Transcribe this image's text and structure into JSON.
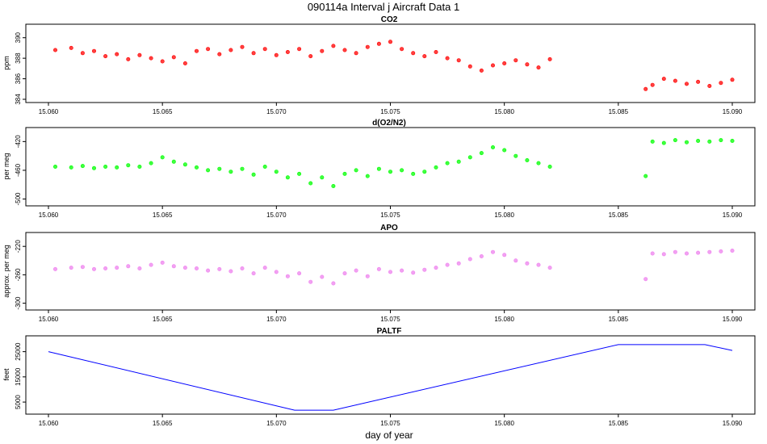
{
  "figure": {
    "title": "090114a   Interval j Aircraft Data 1",
    "xlabel": "day of year"
  },
  "colors": {
    "co2": "#ff0000",
    "do2n2": "#00ff00",
    "apo": "#ee82ee",
    "paltf": "#0000ff"
  },
  "chart_data": [
    {
      "type": "scatter",
      "title": "CO2",
      "ylabel": "ppm",
      "xlim": [
        15.06,
        15.09
      ],
      "ylim": [
        384,
        391
      ],
      "xticks": [
        "15.060",
        "15.065",
        "15.070",
        "15.075",
        "15.080",
        "15.085",
        "15.090"
      ],
      "yticks": [
        "384",
        "386",
        "388",
        "390"
      ],
      "series": [
        {
          "x": [
            15.0603,
            15.061,
            15.0615,
            15.062,
            15.0625,
            15.063,
            15.0635,
            15.064,
            15.0645,
            15.065,
            15.0655,
            15.066,
            15.0665,
            15.067,
            15.0675,
            15.068,
            15.0685,
            15.069,
            15.0695,
            15.07,
            15.0705,
            15.071,
            15.0715,
            15.072,
            15.0725,
            15.073,
            15.0735,
            15.074,
            15.0745,
            15.075,
            15.0755,
            15.076,
            15.0765,
            15.077,
            15.0775,
            15.078,
            15.0785,
            15.079,
            15.0795,
            15.08,
            15.0805,
            15.081,
            15.0815,
            15.082,
            15.0862,
            15.0865,
            15.087,
            15.0875,
            15.088,
            15.0885,
            15.089,
            15.0895,
            15.09
          ],
          "y": [
            388.8,
            389.0,
            388.5,
            388.7,
            388.2,
            388.4,
            387.9,
            388.3,
            388.0,
            387.7,
            388.1,
            387.5,
            388.7,
            388.9,
            388.4,
            388.8,
            389.1,
            388.5,
            388.9,
            388.3,
            388.6,
            388.9,
            388.2,
            388.7,
            389.2,
            388.8,
            388.5,
            389.1,
            389.4,
            389.6,
            388.9,
            388.5,
            388.2,
            388.6,
            388.0,
            387.8,
            387.2,
            386.8,
            387.3,
            387.5,
            387.8,
            387.4,
            387.1,
            387.9,
            385.0,
            385.4,
            386.0,
            385.8,
            385.5,
            385.7,
            385.3,
            385.6,
            385.9
          ]
        }
      ]
    },
    {
      "type": "scatter",
      "title": "d(O2/N2)",
      "ylabel": "per meg",
      "xlim": [
        15.06,
        15.09
      ],
      "ylim": [
        -505,
        -405
      ],
      "xticks": [
        "15.060",
        "15.065",
        "15.070",
        "15.075",
        "15.080",
        "15.085",
        "15.090"
      ],
      "yticks": [
        "-500",
        "-460",
        "-420"
      ],
      "series": [
        {
          "x": [
            15.0603,
            15.061,
            15.0615,
            15.062,
            15.0625,
            15.063,
            15.0635,
            15.064,
            15.0645,
            15.065,
            15.0655,
            15.066,
            15.0665,
            15.067,
            15.0675,
            15.068,
            15.0685,
            15.069,
            15.0695,
            15.07,
            15.0705,
            15.071,
            15.0715,
            15.072,
            15.0725,
            15.073,
            15.0735,
            15.074,
            15.0745,
            15.075,
            15.0755,
            15.076,
            15.0765,
            15.077,
            15.0775,
            15.078,
            15.0785,
            15.079,
            15.0795,
            15.08,
            15.0805,
            15.081,
            15.0815,
            15.082,
            15.0862,
            15.0865,
            15.087,
            15.0875,
            15.088,
            15.0885,
            15.089,
            15.0895,
            15.09
          ],
          "y": [
            -455,
            -456,
            -454,
            -457,
            -455,
            -456,
            -453,
            -455,
            -450,
            -442,
            -448,
            -452,
            -456,
            -460,
            -458,
            -462,
            -458,
            -466,
            -455,
            -462,
            -470,
            -465,
            -478,
            -470,
            -482,
            -465,
            -460,
            -468,
            -458,
            -462,
            -460,
            -465,
            -462,
            -456,
            -450,
            -448,
            -442,
            -436,
            -428,
            -432,
            -440,
            -446,
            -450,
            -455,
            -468,
            -420,
            -422,
            -418,
            -421,
            -419,
            -420,
            -418,
            -419
          ]
        }
      ]
    },
    {
      "type": "scatter",
      "title": "APO",
      "ylabel": "approx. per meg",
      "xlim": [
        15.06,
        15.09
      ],
      "ylim": [
        -305,
        -205
      ],
      "xticks": [
        "15.060",
        "15.065",
        "15.070",
        "15.075",
        "15.080",
        "15.085",
        "15.090"
      ],
      "yticks": [
        "-300",
        "-260",
        "-220"
      ],
      "series": [
        {
          "x": [
            15.0603,
            15.061,
            15.0615,
            15.062,
            15.0625,
            15.063,
            15.0635,
            15.064,
            15.0645,
            15.065,
            15.0655,
            15.066,
            15.0665,
            15.067,
            15.0675,
            15.068,
            15.0685,
            15.069,
            15.0695,
            15.07,
            15.0705,
            15.071,
            15.0715,
            15.072,
            15.0725,
            15.073,
            15.0735,
            15.074,
            15.0745,
            15.075,
            15.0755,
            15.076,
            15.0765,
            15.077,
            15.0775,
            15.078,
            15.0785,
            15.079,
            15.0795,
            15.08,
            15.0805,
            15.081,
            15.0815,
            15.082,
            15.0862,
            15.0865,
            15.087,
            15.0875,
            15.088,
            15.0885,
            15.089,
            15.0895,
            15.09
          ],
          "y": [
            -252,
            -250,
            -249,
            -252,
            -251,
            -250,
            -248,
            -251,
            -246,
            -243,
            -248,
            -250,
            -251,
            -254,
            -252,
            -255,
            -251,
            -258,
            -250,
            -256,
            -262,
            -258,
            -270,
            -263,
            -272,
            -258,
            -254,
            -262,
            -252,
            -256,
            -254,
            -257,
            -253,
            -250,
            -246,
            -244,
            -238,
            -234,
            -228,
            -232,
            -240,
            -244,
            -246,
            -250,
            -266,
            -230,
            -231,
            -228,
            -230,
            -229,
            -228,
            -227,
            -226
          ]
        }
      ]
    },
    {
      "type": "line",
      "title": "PALTF",
      "ylabel": "feet",
      "xlim": [
        15.06,
        15.09
      ],
      "ylim": [
        1500,
        30000
      ],
      "xticks": [
        "15.060",
        "15.065",
        "15.070",
        "15.075",
        "15.080",
        "15.085",
        "15.090"
      ],
      "yticks": [
        "5000",
        "15000",
        "25000"
      ],
      "series": [
        {
          "x": [
            15.06,
            15.0708,
            15.0725,
            15.085,
            15.0888,
            15.09
          ],
          "y": [
            25000,
            1800,
            1800,
            27800,
            27800,
            25500
          ]
        }
      ]
    }
  ]
}
